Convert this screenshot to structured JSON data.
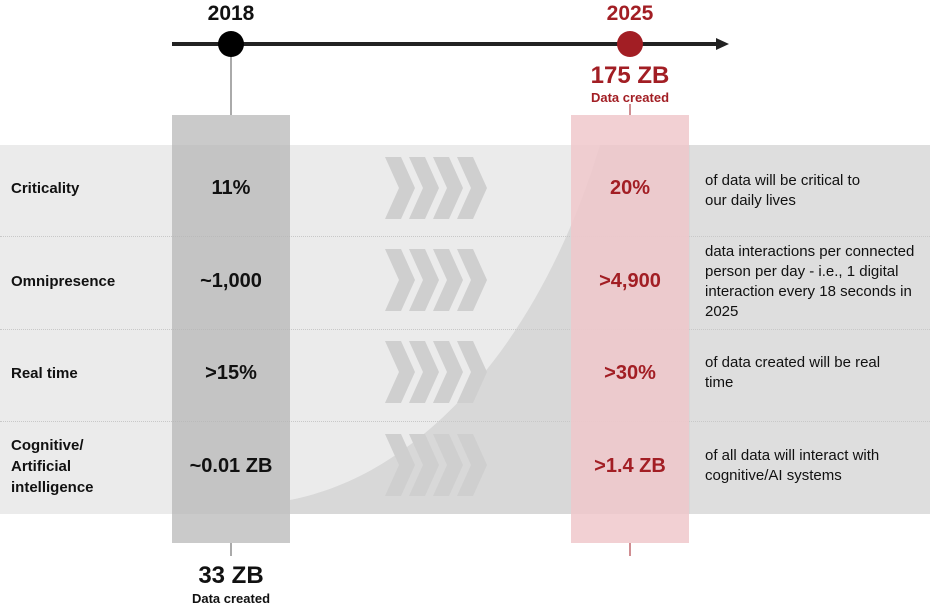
{
  "timeline": {
    "start": {
      "year": "2018",
      "amount": "33 ZB",
      "caption": "Data created"
    },
    "end": {
      "year": "2025",
      "amount": "175 ZB",
      "caption": "Data created"
    }
  },
  "rows": [
    {
      "label": "Criticality",
      "value_2018": "11%",
      "value_2025": "20%",
      "description": "of data will be critical to our daily lives"
    },
    {
      "label": "Omnipresence",
      "value_2018": "~1,000",
      "value_2025": ">4,900",
      "description": "data interactions per connected person per day - i.e., 1 digital interaction every 18 seconds in 2025"
    },
    {
      "label": "Real time",
      "value_2018": ">15%",
      "value_2025": ">30%",
      "description": "of data created will be real time"
    },
    {
      "label": "Cognitive/ Artificial intelligence",
      "value_2018": "~0.01 ZB",
      "value_2025": ">1.4 ZB",
      "description": "of all data will interact with cognitive/AI systems"
    }
  ],
  "colors": {
    "accent": "#a21e24",
    "old_column": "#c4c4c4",
    "new_column": "#f0cdd0",
    "band": "#ebebeb"
  }
}
